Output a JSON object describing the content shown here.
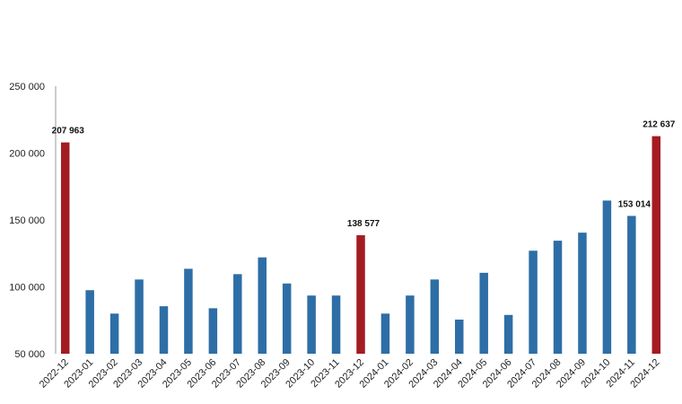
{
  "chart_data": {
    "type": "bar",
    "categories": [
      "2022-12",
      "2023-01",
      "2023-02",
      "2023-03",
      "2023-04",
      "2023-05",
      "2023-06",
      "2023-07",
      "2023-08",
      "2023-09",
      "2023-10",
      "2023-11",
      "2023-12",
      "2024-01",
      "2024-02",
      "2024-03",
      "2024-04",
      "2024-05",
      "2024-06",
      "2024-07",
      "2024-08",
      "2024-09",
      "2024-10",
      "2024-11",
      "2024-12"
    ],
    "values": [
      207963,
      97500,
      80000,
      105500,
      85500,
      113500,
      84000,
      109500,
      122000,
      102500,
      93500,
      93500,
      138577,
      80000,
      93500,
      105500,
      75500,
      110500,
      79000,
      127000,
      134500,
      140500,
      164500,
      153014,
      212637
    ],
    "highlight": [
      true,
      false,
      false,
      false,
      false,
      false,
      false,
      false,
      false,
      false,
      false,
      false,
      true,
      false,
      false,
      false,
      false,
      false,
      false,
      false,
      false,
      false,
      false,
      false,
      true
    ],
    "data_labels": [
      {
        "index": 0,
        "text": "207 963"
      },
      {
        "index": 12,
        "text": "138 577"
      },
      {
        "index": 23,
        "text": "153 014"
      },
      {
        "index": 24,
        "text": "212 637"
      }
    ],
    "ylim": [
      50000,
      250000
    ],
    "yticks": [
      50000,
      100000,
      150000,
      200000,
      250000
    ],
    "ytick_labels": [
      "50 000",
      "100 000",
      "150 000",
      "200 000",
      "250 000"
    ],
    "title": "",
    "xlabel": "",
    "ylabel": "",
    "grid": false,
    "colors": {
      "bar": "#2e6ea6",
      "highlight": "#a31c22",
      "axis": "#999999"
    }
  }
}
